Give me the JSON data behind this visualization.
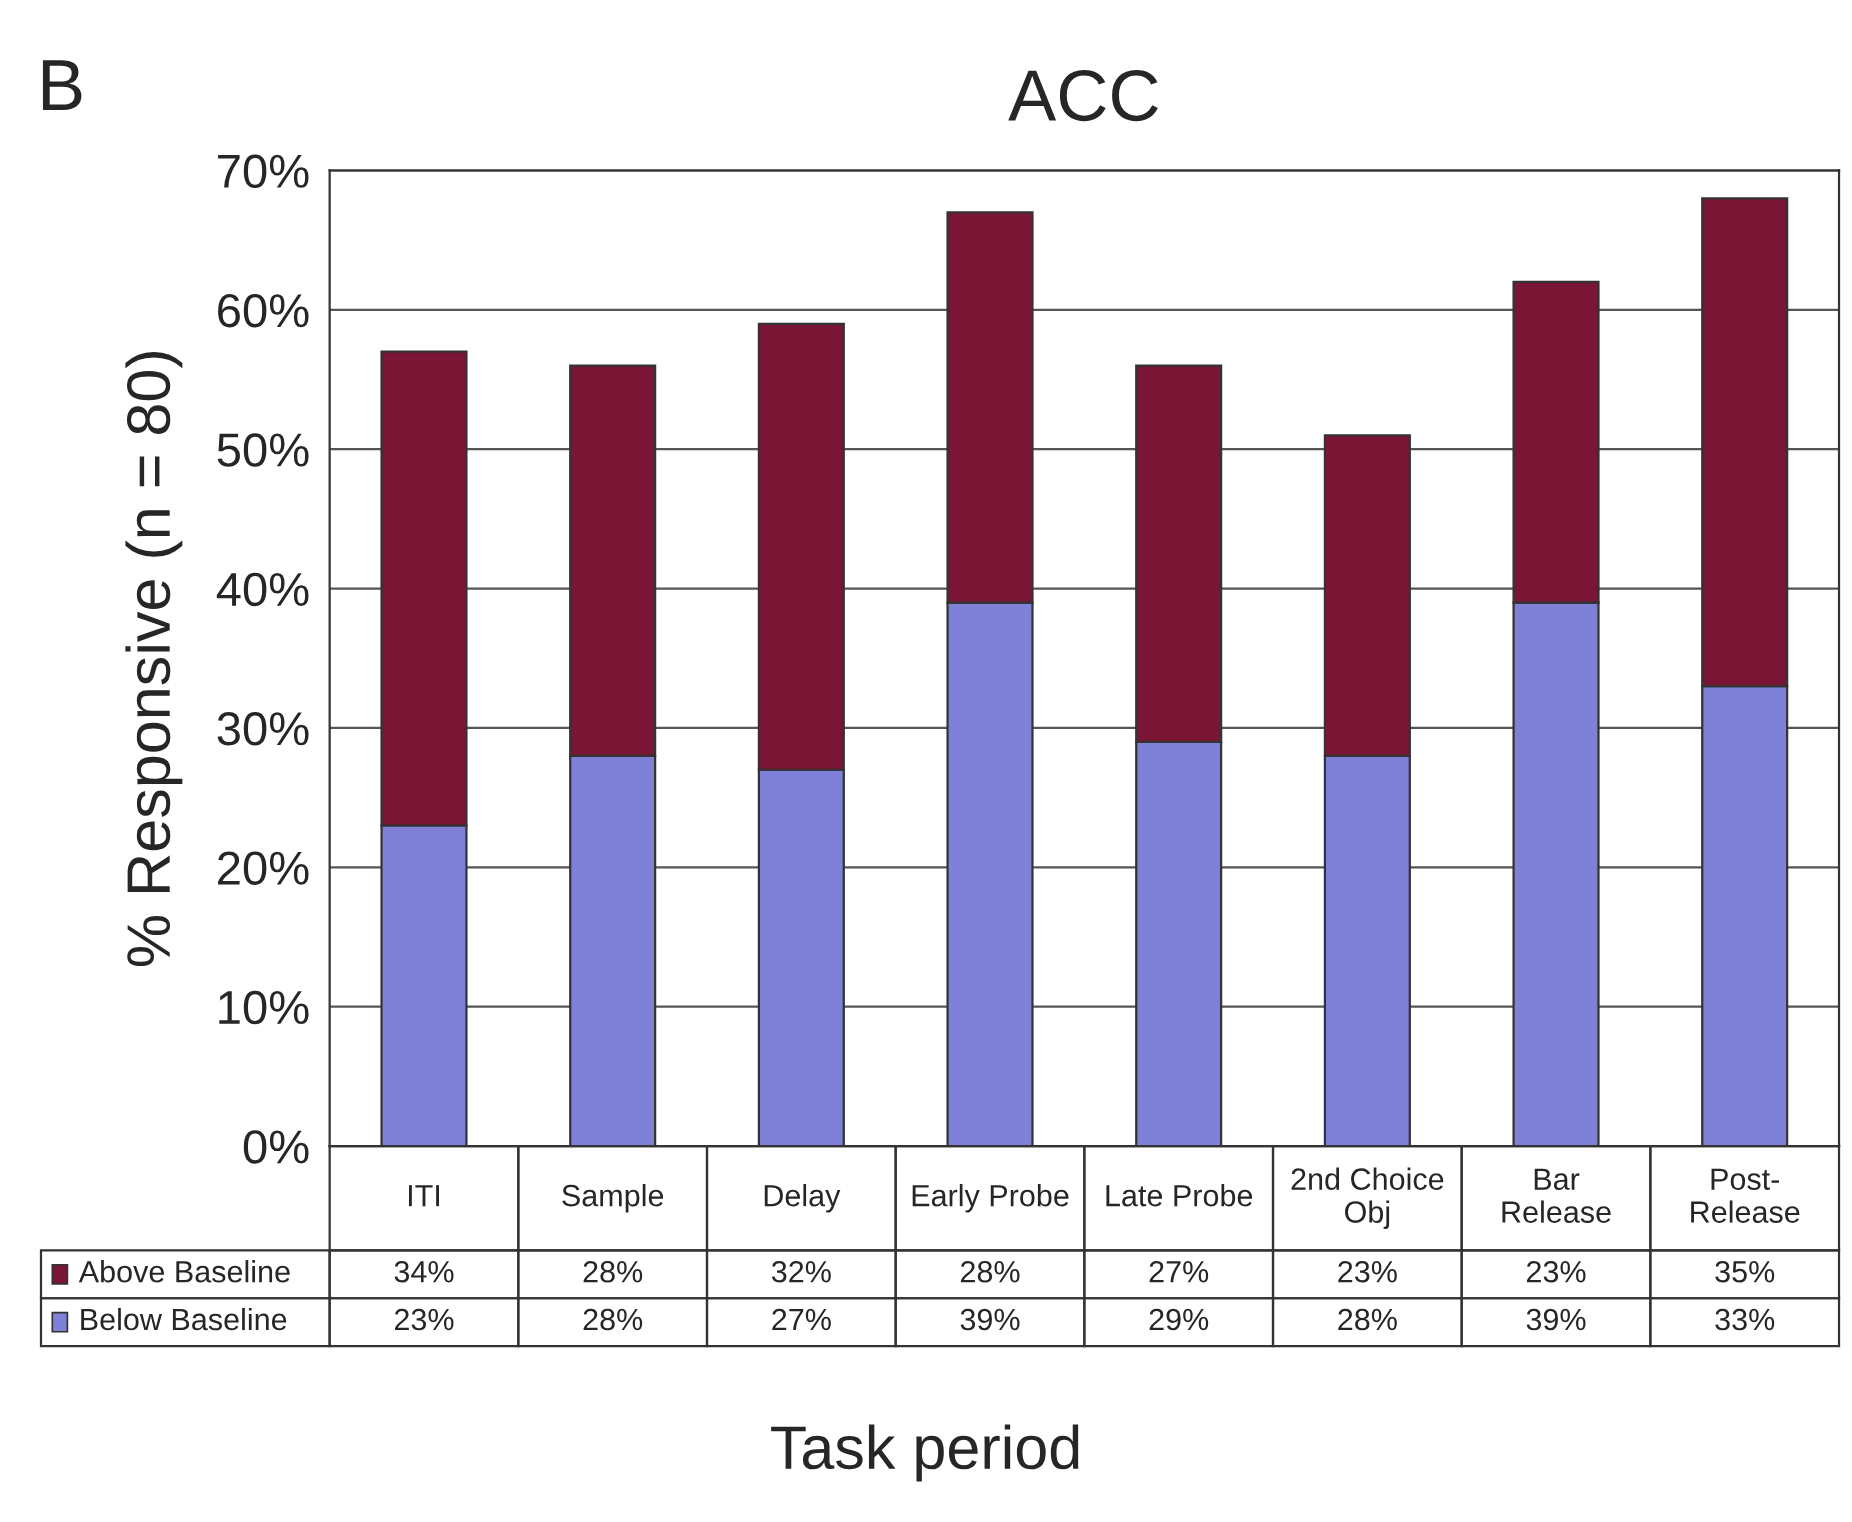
{
  "chart_data": {
    "type": "bar",
    "title": "ACC",
    "ylabel": "% Responsive (n = 80)",
    "xlabel": "Task period",
    "annotations": [
      "B"
    ],
    "categories": [
      "ITI",
      "Sample",
      "Delay",
      "Early Probe",
      "Late Probe",
      "2nd Choice\nObj",
      "Bar\nRelease",
      "Post-\nRelease"
    ],
    "stacked": true,
    "series": [
      {
        "name": "Below Baseline",
        "color": "#7f80d8",
        "values": [
          23,
          28,
          27,
          39,
          29,
          28,
          39,
          33
        ],
        "value_labels": [
          "23%",
          "28%",
          "27%",
          "39%",
          "29%",
          "28%",
          "39%",
          "33%"
        ]
      },
      {
        "name": "Above Baseline",
        "color": "#7a1535",
        "values": [
          34,
          28,
          32,
          28,
          27,
          23,
          23,
          35
        ],
        "value_labels": [
          "34%",
          "28%",
          "32%",
          "28%",
          "27%",
          "23%",
          "23%",
          "35%"
        ]
      }
    ],
    "ylim": [
      0,
      70
    ],
    "yticks": [
      {
        "value": 0,
        "label": "0%"
      },
      {
        "value": 10,
        "label": "10%"
      },
      {
        "value": 20,
        "label": "20%"
      },
      {
        "value": 30,
        "label": "30%"
      },
      {
        "value": 40,
        "label": "40%"
      },
      {
        "value": 50,
        "label": "50%"
      },
      {
        "value": 60,
        "label": "60%"
      },
      {
        "value": 70,
        "label": "70%"
      }
    ],
    "grid": "y",
    "legend": "bottom"
  }
}
